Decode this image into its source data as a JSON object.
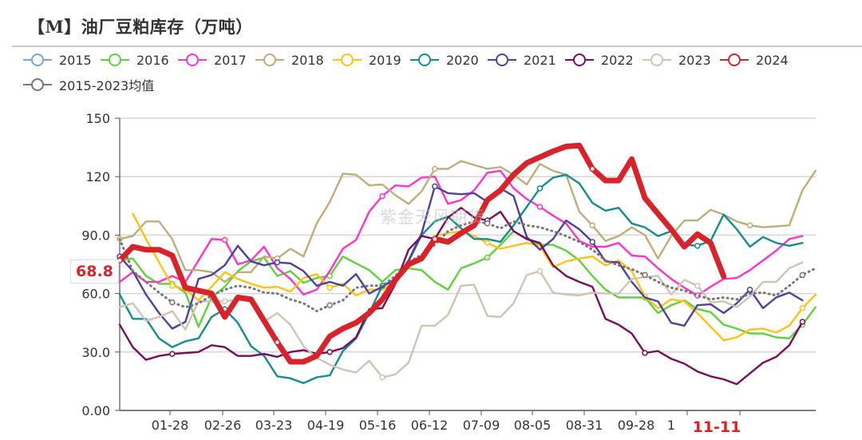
{
  "title": "【M】油厂豆粕库存（万吨）",
  "watermark": "紫金天风期货",
  "last_value_label": "68.8",
  "chart_data": {
    "type": "line",
    "title": "【M】油厂豆粕库存（万吨）",
    "xlabel": "",
    "ylabel": "",
    "ylim": [
      0,
      150
    ],
    "y_ticks": [
      "0.00",
      "30.0",
      "60.0",
      "90.0",
      "120",
      "150"
    ],
    "y_tick_values": [
      0,
      30,
      60,
      90,
      120,
      150
    ],
    "x_tick_labels": [
      "01-28",
      "02-26",
      "03-23",
      "04-19",
      "05-16",
      "06-12",
      "07-09",
      "08-05",
      "08-31",
      "09-28",
      "1",
      "11-11"
    ],
    "highlighted_x_label": "11-11",
    "grid": true,
    "legend_placement": "top",
    "series": [
      {
        "name": "2015",
        "color": "#6fa8dc",
        "values": []
      },
      {
        "name": "2016",
        "color": "#5dd23c",
        "values": [
          77,
          78,
          69,
          65,
          65,
          60.5,
          43,
          58,
          63.5,
          71.5,
          76.5,
          78.5,
          69,
          71.5,
          65.5,
          68,
          69,
          79,
          75.5,
          72,
          66,
          72,
          73,
          72,
          66,
          62,
          73,
          75.5,
          78.5,
          85,
          92,
          88,
          85,
          85,
          82,
          77,
          69,
          62,
          58,
          58,
          58,
          50,
          54,
          56.5,
          52,
          50.5,
          44,
          42,
          39.5,
          39.5,
          37.5,
          37,
          44,
          53
        ]
      },
      {
        "name": "2017",
        "color": "#ff33cc",
        "values": [
          66,
          71,
          66,
          66,
          69,
          66,
          77,
          88,
          87.5,
          75,
          77,
          84,
          73,
          67.5,
          59.5,
          62,
          71.5,
          83,
          87.5,
          102,
          110,
          115.5,
          115,
          119.5,
          120,
          106,
          108,
          113,
          122,
          123,
          114,
          108.5,
          104.5,
          100,
          96,
          87,
          84,
          84,
          86,
          79.5,
          79,
          73,
          67.5,
          63,
          59,
          63.5,
          67.5,
          68,
          72,
          77,
          82,
          88,
          89.5
        ]
      },
      {
        "name": "2018",
        "color": "#bcae79",
        "values": [
          88,
          89.5,
          97,
          97,
          88,
          72,
          72,
          71,
          66,
          71,
          71,
          79,
          78,
          83,
          79,
          96,
          107,
          121.5,
          121,
          115.5,
          116,
          110.5,
          106,
          112.5,
          124,
          124,
          128,
          126,
          124,
          125,
          121,
          116,
          126.5,
          123,
          121,
          102,
          95,
          87,
          89.5,
          94,
          90,
          78,
          89.5,
          97.5,
          97.5,
          103,
          100.5,
          97,
          95,
          94,
          94.5,
          95,
          113,
          123
        ]
      },
      {
        "name": "2019",
        "color": "#ffc20e",
        "values": [
          null,
          101,
          88,
          76,
          64,
          62,
          56.5,
          63.5,
          71,
          67.5,
          65,
          63,
          63.5,
          61,
          68,
          70,
          63,
          65,
          59,
          62,
          62,
          66,
          74,
          77,
          89.5,
          91,
          92,
          89.5,
          86,
          83,
          84.5,
          86,
          84.5,
          73.5,
          76.5,
          78,
          79,
          74.5,
          77,
          71.5,
          58.5,
          52.5,
          57,
          56,
          50,
          43,
          36,
          37.5,
          41.5,
          42,
          40,
          43.5,
          52.5,
          59.5
        ]
      },
      {
        "name": "2020",
        "color": "#138d90",
        "values": [
          59.5,
          47,
          47,
          37,
          32.5,
          35.5,
          37,
          48,
          52,
          45,
          33,
          28,
          17.5,
          16.5,
          14,
          17,
          18,
          30.5,
          37,
          50,
          64,
          67,
          76.5,
          90,
          97,
          99.5,
          93.5,
          88,
          88,
          86.5,
          95,
          104.5,
          114,
          119.5,
          121,
          116.5,
          106.5,
          102.5,
          104,
          96,
          94,
          89.5,
          92,
          85,
          84.5,
          87,
          100.5,
          93,
          84,
          89,
          86,
          84.5,
          86
        ]
      },
      {
        "name": "2021",
        "color": "#4e3fa0",
        "values": [
          79,
          71.5,
          59.5,
          50,
          42,
          45.5,
          67.5,
          69.5,
          74.5,
          84.5,
          76.5,
          74.5,
          76,
          75.5,
          71.5,
          64,
          66,
          64,
          70,
          60,
          63.5,
          67.5,
          77,
          91,
          115,
          111.5,
          111,
          111.5,
          107,
          114,
          110,
          89,
          82.5,
          88,
          97.5,
          93,
          86.5,
          76.5,
          76,
          66,
          58,
          56,
          45,
          43.5,
          54,
          54.5,
          50,
          55,
          62,
          52.5,
          58,
          60.5,
          56.5
        ]
      },
      {
        "name": "2022",
        "color": "#7b0c5b",
        "values": [
          44,
          32.5,
          26,
          28,
          29,
          29.5,
          30,
          33.5,
          32.5,
          28,
          28,
          29,
          27.5,
          30,
          31,
          29,
          30,
          32,
          37.5,
          52,
          52.5,
          65,
          82.5,
          89.5,
          88,
          99,
          104,
          99,
          97.5,
          102,
          92,
          88,
          86,
          74.5,
          69,
          66,
          63.5,
          47,
          44,
          39.5,
          29.5,
          30.5,
          26.5,
          24,
          20,
          17.5,
          16,
          13.5,
          19,
          24.5,
          27.5,
          33.5,
          45.5
        ]
      },
      {
        "name": "2023",
        "color": "#cfc3b3",
        "values": [
          53,
          55,
          46,
          48,
          51,
          41.5,
          56,
          56,
          56,
          57,
          56,
          45.5,
          50,
          44,
          33,
          27,
          23.5,
          21,
          19.5,
          25.5,
          17,
          18.5,
          24.5,
          43.5,
          43.5,
          49,
          64,
          64.5,
          48.5,
          48,
          55,
          69.5,
          71.5,
          60.5,
          59.5,
          59,
          60.5,
          60,
          60,
          67.5,
          68.5,
          69,
          59.5,
          67,
          64,
          55.5,
          56,
          53,
          58.5,
          66,
          66,
          73,
          76
        ]
      },
      {
        "name": "2024",
        "color": "#d9232a",
        "values": [
          77,
          84,
          82.5,
          82.5,
          79.5,
          63,
          61.5,
          60,
          48,
          58,
          57,
          46,
          35,
          25,
          25,
          28,
          38,
          42,
          45,
          50,
          57,
          67,
          75,
          78,
          88,
          86.5,
          91,
          95,
          108,
          113,
          121,
          127,
          130,
          133,
          135.5,
          136,
          124,
          118,
          118,
          129,
          109,
          101,
          93,
          84,
          90.5,
          86,
          68.8
        ]
      },
      {
        "name": "2015-2023均值",
        "color": "#777777",
        "dotted": true,
        "values": [
          88,
          71.5,
          66,
          60.5,
          55.5,
          53,
          55,
          59,
          62,
          64,
          63,
          60.5,
          60,
          57,
          55,
          51,
          54,
          56.5,
          63,
          64,
          64,
          69,
          76,
          80,
          85,
          92,
          95,
          97,
          96,
          93.5,
          97,
          95,
          94,
          92,
          89.5,
          86.5,
          82.5,
          77,
          74.5,
          72.5,
          69.5,
          66,
          63,
          61.5,
          59,
          57,
          58,
          57,
          60,
          60.5,
          59,
          64,
          69.5,
          73
        ]
      }
    ]
  }
}
